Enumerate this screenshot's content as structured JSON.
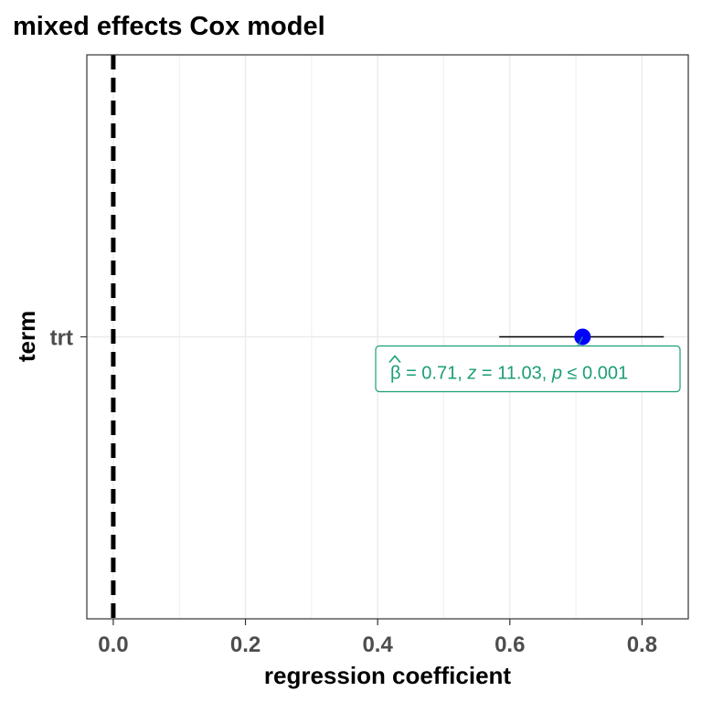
{
  "chart_data": {
    "type": "scatter",
    "title": "mixed effects Cox model",
    "xlabel": "regression coefficient",
    "ylabel": "term",
    "xlim": [
      -0.04,
      0.87
    ],
    "x_ticks": [
      0.0,
      0.2,
      0.4,
      0.6,
      0.8
    ],
    "x_tick_labels": [
      "0.0",
      "0.2",
      "0.4",
      "0.6",
      "0.8"
    ],
    "categories": [
      "trt"
    ],
    "reference_line": {
      "x": 0,
      "style": "dashed",
      "color": "#000000"
    },
    "grid": true,
    "series": [
      {
        "points": [
          {
            "term": "trt",
            "estimate": 0.71,
            "conf_low": 0.584,
            "conf_high": 0.833
          }
        ],
        "color": "#0000ff"
      }
    ],
    "annotations": [
      {
        "term": "trt",
        "beta_symbol": "β",
        "beta_value": "= 0.71,",
        "z_symbol": "z",
        "z_value": "= 11.03,",
        "p_symbol": "p",
        "p_value": "≤ 0.001",
        "color": "#1b9e77"
      }
    ]
  }
}
